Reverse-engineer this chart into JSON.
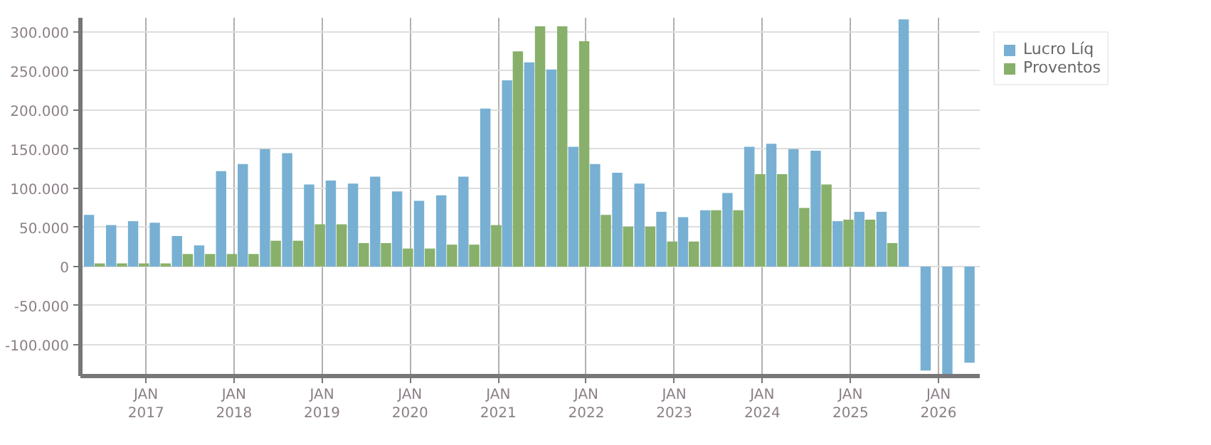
{
  "chart_data": {
    "type": "bar",
    "x": [
      "2016-06",
      "2016-09",
      "2016-12",
      "2017-03",
      "2017-06",
      "2017-09",
      "2017-12",
      "2018-03",
      "2018-06",
      "2018-09",
      "2018-12",
      "2019-03",
      "2019-06",
      "2019-09",
      "2019-12",
      "2020-03",
      "2020-06",
      "2020-09",
      "2020-12",
      "2021-03",
      "2021-06",
      "2021-09",
      "2021-12",
      "2022-03",
      "2022-06",
      "2022-09",
      "2022-12",
      "2023-03",
      "2023-06",
      "2023-09",
      "2023-12",
      "2024-03",
      "2024-06",
      "2024-09",
      "2024-12",
      "2025-03",
      "2025-06",
      "2025-09",
      "2025-12",
      "2026-03",
      "2026-06"
    ],
    "series": [
      {
        "name": "Lucro Líq",
        "color": "#77b0d3",
        "values": [
          66000,
          53000,
          58000,
          56000,
          39000,
          27000,
          122000,
          131000,
          150000,
          145000,
          105000,
          110000,
          106000,
          115000,
          96000,
          84000,
          91000,
          115000,
          202000,
          238000,
          261000,
          252000,
          153000,
          131000,
          120000,
          106000,
          70000,
          63000,
          72000,
          94000,
          153000,
          157000,
          150000,
          148000,
          58000,
          70000,
          70000,
          316000,
          -133000,
          -140000,
          -123000
        ]
      },
      {
        "name": "Proventos",
        "color": "#88b06a",
        "values": [
          4000,
          4000,
          4000,
          4000,
          16000,
          16000,
          16000,
          16000,
          33000,
          33000,
          54000,
          54000,
          30000,
          30000,
          23000,
          23000,
          28000,
          28000,
          53000,
          275000,
          307000,
          307000,
          288000,
          66000,
          51000,
          51000,
          32000,
          32000,
          72000,
          72000,
          118000,
          118000,
          75000,
          105000,
          60000,
          60000,
          30000,
          0,
          0,
          0,
          0
        ]
      }
    ],
    "xlim": [
      "2016-04-04",
      "2026-06-21"
    ],
    "xticks": [
      {
        "value": "2017-01-01",
        "label": "JAN\n2017"
      },
      {
        "value": "2018-01-01",
        "label": "JAN\n2018"
      },
      {
        "value": "2019-01-01",
        "label": "JAN\n2019"
      },
      {
        "value": "2020-01-01",
        "label": "JAN\n2020"
      },
      {
        "value": "2021-01-01",
        "label": "JAN\n2021"
      },
      {
        "value": "2022-01-01",
        "label": "JAN\n2022"
      },
      {
        "value": "2023-01-01",
        "label": "JAN\n2023"
      },
      {
        "value": "2024-01-01",
        "label": "JAN\n2024"
      },
      {
        "value": "2025-01-01",
        "label": "JAN\n2025"
      },
      {
        "value": "2026-01-01",
        "label": "JAN\n2026"
      }
    ],
    "ylim": [
      -140000,
      318000
    ],
    "yticks": [
      {
        "value": -100000,
        "label": "-100.000"
      },
      {
        "value": -50000,
        "label": "-50.000"
      },
      0,
      {
        "value": 50000,
        "label": "50.000"
      },
      {
        "value": 100000,
        "label": "100.000"
      },
      {
        "value": 150000,
        "label": "150.000"
      },
      {
        "value": 200000,
        "label": "200.000"
      },
      {
        "value": 250000,
        "label": "250.000"
      },
      {
        "value": 300000,
        "label": "300.000"
      }
    ],
    "grid": true,
    "legend": "top right"
  }
}
